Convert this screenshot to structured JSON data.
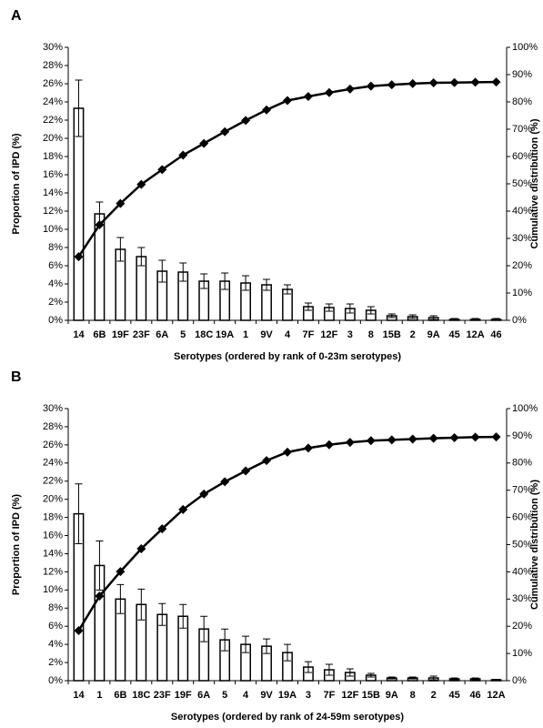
{
  "chart_data": [
    {
      "type": "bar",
      "panel_label": "A",
      "xlabel": "Serotypes (ordered by rank of 0-23m serotypes)",
      "ylabel": "Proportion of IPD (%)",
      "y2label": "Cumulative distribution (%)",
      "categories": [
        "14",
        "6B",
        "19F",
        "23F",
        "6A",
        "5",
        "18C",
        "19A",
        "1",
        "9V",
        "4",
        "7F",
        "12F",
        "3",
        "8",
        "15B",
        "2",
        "9A",
        "45",
        "12A",
        "46"
      ],
      "values": [
        23.3,
        11.7,
        7.8,
        7.0,
        5.4,
        5.3,
        4.3,
        4.3,
        4.1,
        3.9,
        3.4,
        1.5,
        1.4,
        1.3,
        1.1,
        0.5,
        0.4,
        0.3,
        0.1,
        0.1,
        0.1
      ],
      "errors": [
        3.1,
        1.3,
        1.3,
        1.0,
        1.2,
        1.0,
        0.8,
        0.9,
        0.8,
        0.6,
        0.5,
        0.4,
        0.4,
        0.5,
        0.4,
        0.2,
        0.2,
        0.2,
        0.1,
        0.1,
        0.1
      ],
      "color": "#ffffff",
      "cumulative": {
        "axis": "y2",
        "color": "#000000",
        "values": [
          23.3,
          35.0,
          42.8,
          49.8,
          55.2,
          60.5,
          64.8,
          69.1,
          73.2,
          77.1,
          80.5,
          82.0,
          83.4,
          84.7,
          85.8,
          86.3,
          86.7,
          87.0,
          87.1,
          87.2,
          87.3
        ]
      },
      "ylim": [
        0,
        30
      ],
      "yticks": [
        {
          "value": 0,
          "label": "0%"
        },
        {
          "value": 2,
          "label": "2%"
        },
        {
          "value": 4,
          "label": "4%"
        },
        {
          "value": 6,
          "label": "6%"
        },
        {
          "value": 8,
          "label": "8%"
        },
        {
          "value": 10,
          "label": "10%"
        },
        {
          "value": 12,
          "label": "12%"
        },
        {
          "value": 14,
          "label": "14%"
        },
        {
          "value": 16,
          "label": "16%"
        },
        {
          "value": 18,
          "label": "18%"
        },
        {
          "value": 20,
          "label": "20%"
        },
        {
          "value": 22,
          "label": "22%"
        },
        {
          "value": 24,
          "label": "24%"
        },
        {
          "value": 26,
          "label": "26%"
        },
        {
          "value": 28,
          "label": "28%"
        },
        {
          "value": 30,
          "label": "30%"
        }
      ],
      "y2lim": [
        0,
        100
      ],
      "y2ticks": [
        {
          "value": 0,
          "label": "0%"
        },
        {
          "value": 10,
          "label": "10%"
        },
        {
          "value": 20,
          "label": "20%"
        },
        {
          "value": 30,
          "label": "30%"
        },
        {
          "value": 40,
          "label": "40%"
        },
        {
          "value": 50,
          "label": "50%"
        },
        {
          "value": 60,
          "label": "60%"
        },
        {
          "value": 70,
          "label": "70%"
        },
        {
          "value": 80,
          "label": "80%"
        },
        {
          "value": 90,
          "label": "90%"
        },
        {
          "value": 100,
          "label": "100%"
        }
      ],
      "grid": false
    },
    {
      "type": "bar",
      "panel_label": "B",
      "xlabel": "Serotypes (ordered by rank of 24-59m serotypes)",
      "ylabel": "Proportion of IPD (%)",
      "y2label": "Cumulative distribution (%)",
      "categories": [
        "14",
        "1",
        "6B",
        "18C",
        "23F",
        "19F",
        "6A",
        "5",
        "4",
        "9V",
        "19A",
        "3",
        "7F",
        "12F",
        "15B",
        "9A",
        "8",
        "2",
        "45",
        "46",
        "12A"
      ],
      "values": [
        18.4,
        12.7,
        9.0,
        8.4,
        7.3,
        7.1,
        5.7,
        4.5,
        4.0,
        3.8,
        3.1,
        1.5,
        1.2,
        0.9,
        0.6,
        0.3,
        0.3,
        0.3,
        0.2,
        0.2,
        0.1
      ],
      "errors": [
        3.3,
        2.7,
        1.6,
        1.7,
        1.2,
        1.3,
        1.4,
        1.2,
        0.9,
        0.8,
        0.9,
        0.6,
        0.6,
        0.4,
        0.2,
        0.1,
        0.1,
        0.2,
        0.1,
        0.1,
        0.05
      ],
      "color": "#ffffff",
      "cumulative": {
        "axis": "y2",
        "color": "#000000",
        "values": [
          18.4,
          31.1,
          40.1,
          48.5,
          55.8,
          62.9,
          68.6,
          73.1,
          77.1,
          80.9,
          84.0,
          85.5,
          86.7,
          87.6,
          88.2,
          88.5,
          88.8,
          89.1,
          89.3,
          89.5,
          89.6
        ]
      },
      "ylim": [
        0,
        30
      ],
      "yticks": [
        {
          "value": 0,
          "label": "0%"
        },
        {
          "value": 2,
          "label": "2%"
        },
        {
          "value": 4,
          "label": "4%"
        },
        {
          "value": 6,
          "label": "6%"
        },
        {
          "value": 8,
          "label": "8%"
        },
        {
          "value": 10,
          "label": "10%"
        },
        {
          "value": 12,
          "label": "12%"
        },
        {
          "value": 14,
          "label": "14%"
        },
        {
          "value": 16,
          "label": "16%"
        },
        {
          "value": 18,
          "label": "18%"
        },
        {
          "value": 20,
          "label": "20%"
        },
        {
          "value": 22,
          "label": "22%"
        },
        {
          "value": 24,
          "label": "24%"
        },
        {
          "value": 26,
          "label": "26%"
        },
        {
          "value": 28,
          "label": "28%"
        },
        {
          "value": 30,
          "label": "30%"
        }
      ],
      "y2lim": [
        0,
        100
      ],
      "y2ticks": [
        {
          "value": 0,
          "label": "0%"
        },
        {
          "value": 10,
          "label": "10%"
        },
        {
          "value": 20,
          "label": "20%"
        },
        {
          "value": 30,
          "label": "30%"
        },
        {
          "value": 40,
          "label": "40%"
        },
        {
          "value": 50,
          "label": "50%"
        },
        {
          "value": 60,
          "label": "60%"
        },
        {
          "value": 70,
          "label": "70%"
        },
        {
          "value": 80,
          "label": "80%"
        },
        {
          "value": 90,
          "label": "90%"
        },
        {
          "value": 100,
          "label": "100%"
        }
      ],
      "grid": false
    }
  ]
}
